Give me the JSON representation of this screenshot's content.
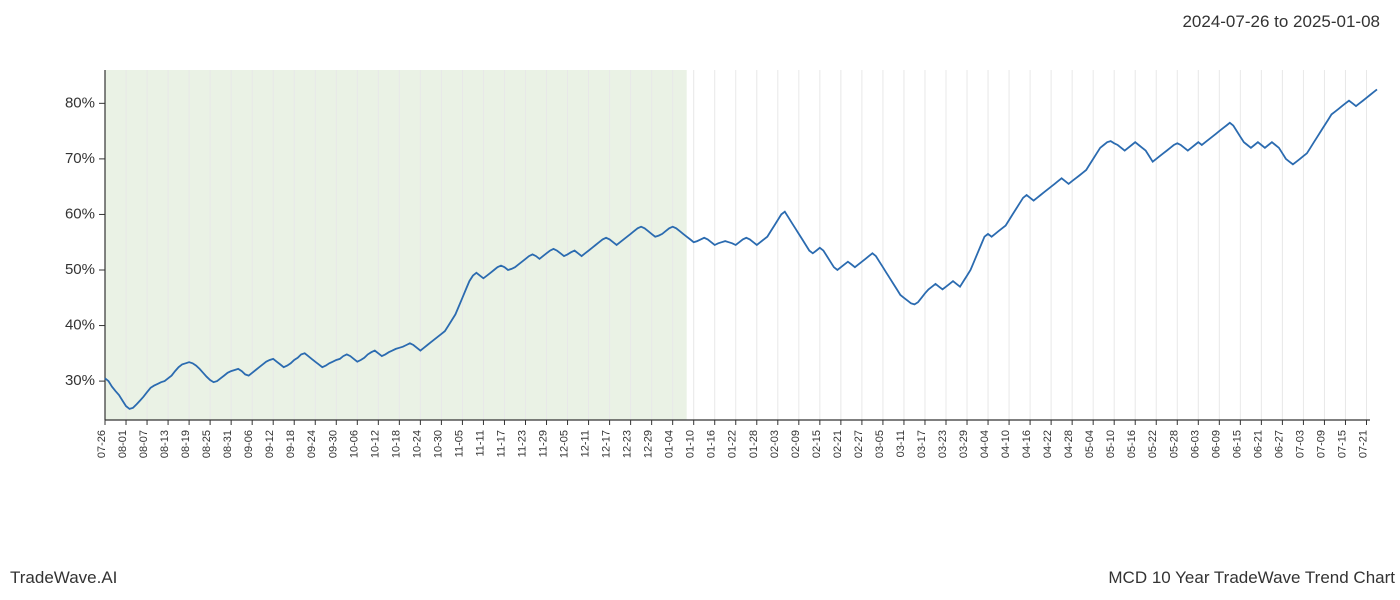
{
  "header": {
    "date_range": "2024-07-26 to 2025-01-08"
  },
  "footer": {
    "left": "TradeWave.AI",
    "right": "MCD 10 Year TradeWave Trend Chart"
  },
  "chart": {
    "type": "line",
    "background_color": "#ffffff",
    "grid_color": "#e8e8e8",
    "axis_color": "#333333",
    "shade_color": "#d8e8d0",
    "shade_opacity": 0.55,
    "line_color": "#2b6bb0",
    "line_width": 1.8,
    "ylim": [
      23,
      86
    ],
    "yticks": [
      30,
      40,
      50,
      60,
      70,
      80
    ],
    "ytick_suffix": "%",
    "xlim": [
      0,
      361
    ],
    "shade_x_range": [
      0,
      166
    ],
    "xtick_labels": [
      "07-26",
      "08-01",
      "08-07",
      "08-13",
      "08-19",
      "08-25",
      "08-31",
      "09-06",
      "09-12",
      "09-18",
      "09-24",
      "09-30",
      "10-06",
      "10-12",
      "10-18",
      "10-24",
      "10-30",
      "11-05",
      "11-11",
      "11-17",
      "11-23",
      "11-29",
      "12-05",
      "12-11",
      "12-17",
      "12-23",
      "12-29",
      "01-04",
      "01-10",
      "01-16",
      "01-22",
      "01-28",
      "02-03",
      "02-09",
      "02-15",
      "02-21",
      "02-27",
      "03-05",
      "03-11",
      "03-17",
      "03-23",
      "03-29",
      "04-04",
      "04-10",
      "04-16",
      "04-22",
      "04-28",
      "05-04",
      "05-10",
      "05-16",
      "05-22",
      "05-28",
      "06-03",
      "06-09",
      "06-15",
      "06-21",
      "06-27",
      "07-03",
      "07-09",
      "07-15",
      "07-21"
    ],
    "xtick_step": 6,
    "label_fontsize": 15,
    "xlabel_fontsize": 11,
    "data": [
      30.5,
      30.0,
      29.0,
      28.2,
      27.5,
      26.5,
      25.5,
      25.0,
      25.2,
      25.8,
      26.5,
      27.2,
      28.0,
      28.8,
      29.2,
      29.5,
      29.8,
      30.0,
      30.5,
      31.0,
      31.8,
      32.5,
      33.0,
      33.2,
      33.4,
      33.2,
      32.8,
      32.2,
      31.5,
      30.8,
      30.2,
      29.8,
      30.0,
      30.5,
      31.0,
      31.5,
      31.8,
      32.0,
      32.2,
      31.8,
      31.2,
      31.0,
      31.5,
      32.0,
      32.5,
      33.0,
      33.5,
      33.8,
      34.0,
      33.5,
      33.0,
      32.5,
      32.8,
      33.2,
      33.8,
      34.2,
      34.8,
      35.0,
      34.5,
      34.0,
      33.5,
      33.0,
      32.5,
      32.8,
      33.2,
      33.5,
      33.8,
      34.0,
      34.5,
      34.8,
      34.5,
      34.0,
      33.5,
      33.8,
      34.2,
      34.8,
      35.2,
      35.5,
      35.0,
      34.5,
      34.8,
      35.2,
      35.5,
      35.8,
      36.0,
      36.2,
      36.5,
      36.8,
      36.5,
      36.0,
      35.5,
      36.0,
      36.5,
      37.0,
      37.5,
      38.0,
      38.5,
      39.0,
      40.0,
      41.0,
      42.0,
      43.5,
      45.0,
      46.5,
      48.0,
      49.0,
      49.5,
      49.0,
      48.5,
      49.0,
      49.5,
      50.0,
      50.5,
      50.8,
      50.5,
      50.0,
      50.2,
      50.5,
      51.0,
      51.5,
      52.0,
      52.5,
      52.8,
      52.5,
      52.0,
      52.5,
      53.0,
      53.5,
      53.8,
      53.5,
      53.0,
      52.5,
      52.8,
      53.2,
      53.5,
      53.0,
      52.5,
      53.0,
      53.5,
      54.0,
      54.5,
      55.0,
      55.5,
      55.8,
      55.5,
      55.0,
      54.5,
      55.0,
      55.5,
      56.0,
      56.5,
      57.0,
      57.5,
      57.8,
      57.5,
      57.0,
      56.5,
      56.0,
      56.2,
      56.5,
      57.0,
      57.5,
      57.8,
      57.5,
      57.0,
      56.5,
      56.0,
      55.5,
      55.0,
      55.2,
      55.5,
      55.8,
      55.5,
      55.0,
      54.5,
      54.8,
      55.0,
      55.2,
      55.0,
      54.8,
      54.5,
      55.0,
      55.5,
      55.8,
      55.5,
      55.0,
      54.5,
      55.0,
      55.5,
      56.0,
      57.0,
      58.0,
      59.0,
      60.0,
      60.5,
      59.5,
      58.5,
      57.5,
      56.5,
      55.5,
      54.5,
      53.5,
      53.0,
      53.5,
      54.0,
      53.5,
      52.5,
      51.5,
      50.5,
      50.0,
      50.5,
      51.0,
      51.5,
      51.0,
      50.5,
      51.0,
      51.5,
      52.0,
      52.5,
      53.0,
      52.5,
      51.5,
      50.5,
      49.5,
      48.5,
      47.5,
      46.5,
      45.5,
      45.0,
      44.5,
      44.0,
      43.8,
      44.2,
      45.0,
      45.8,
      46.5,
      47.0,
      47.5,
      47.0,
      46.5,
      47.0,
      47.5,
      48.0,
      47.5,
      47.0,
      48.0,
      49.0,
      50.0,
      51.5,
      53.0,
      54.5,
      56.0,
      56.5,
      56.0,
      56.5,
      57.0,
      57.5,
      58.0,
      59.0,
      60.0,
      61.0,
      62.0,
      63.0,
      63.5,
      63.0,
      62.5,
      63.0,
      63.5,
      64.0,
      64.5,
      65.0,
      65.5,
      66.0,
      66.5,
      66.0,
      65.5,
      66.0,
      66.5,
      67.0,
      67.5,
      68.0,
      69.0,
      70.0,
      71.0,
      72.0,
      72.5,
      73.0,
      73.2,
      72.8,
      72.5,
      72.0,
      71.5,
      72.0,
      72.5,
      73.0,
      72.5,
      72.0,
      71.5,
      70.5,
      69.5,
      70.0,
      70.5,
      71.0,
      71.5,
      72.0,
      72.5,
      72.8,
      72.5,
      72.0,
      71.5,
      72.0,
      72.5,
      73.0,
      72.5,
      73.0,
      73.5,
      74.0,
      74.5,
      75.0,
      75.5,
      76.0,
      76.5,
      76.0,
      75.0,
      74.0,
      73.0,
      72.5,
      72.0,
      72.5,
      73.0,
      72.5,
      72.0,
      72.5,
      73.0,
      72.5,
      72.0,
      71.0,
      70.0,
      69.5,
      69.0,
      69.5,
      70.0,
      70.5,
      71.0,
      72.0,
      73.0,
      74.0,
      75.0,
      76.0,
      77.0,
      78.0,
      78.5,
      79.0,
      79.5,
      80.0,
      80.5,
      80.0,
      79.5,
      80.0,
      80.5,
      81.0,
      81.5,
      82.0,
      82.5
    ]
  }
}
